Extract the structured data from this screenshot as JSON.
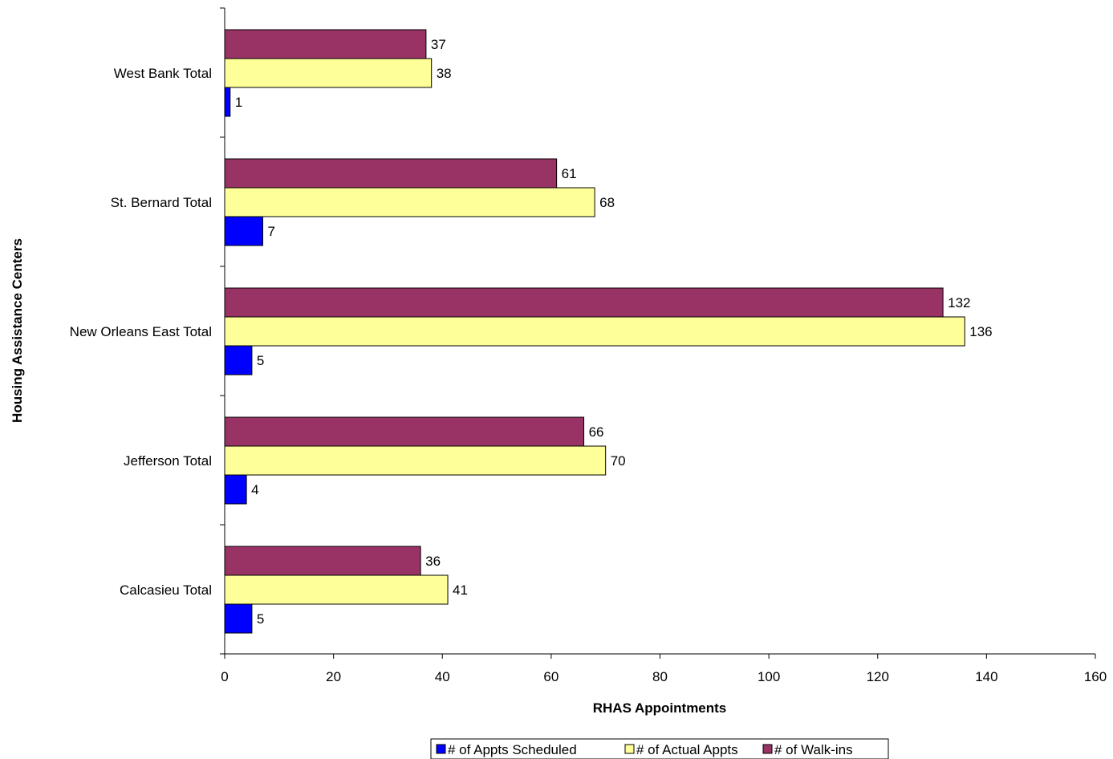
{
  "chart_data": {
    "type": "bar",
    "orientation": "horizontal",
    "categories": [
      "West Bank Total",
      "St. Bernard Total",
      "New Orleans East Total",
      "Jefferson Total",
      "Calcasieu Total"
    ],
    "series": [
      {
        "name": "# of Appts Scheduled",
        "color": "#0000ff",
        "values": [
          1,
          7,
          5,
          4,
          5
        ]
      },
      {
        "name": "# of Actual Appts",
        "color": "#ffff99",
        "values": [
          38,
          68,
          136,
          70,
          41
        ]
      },
      {
        "name": "# of Walk-ins",
        "color": "#993366",
        "values": [
          37,
          61,
          132,
          66,
          36
        ]
      }
    ],
    "xlabel": "RHAS Appointments",
    "ylabel": "Housing Assistance Centers",
    "xlim": [
      0,
      160
    ],
    "xticks": [
      "0",
      "20",
      "40",
      "60",
      "80",
      "100",
      "120",
      "140",
      "160"
    ],
    "grid": false,
    "legend_position": "bottom"
  }
}
